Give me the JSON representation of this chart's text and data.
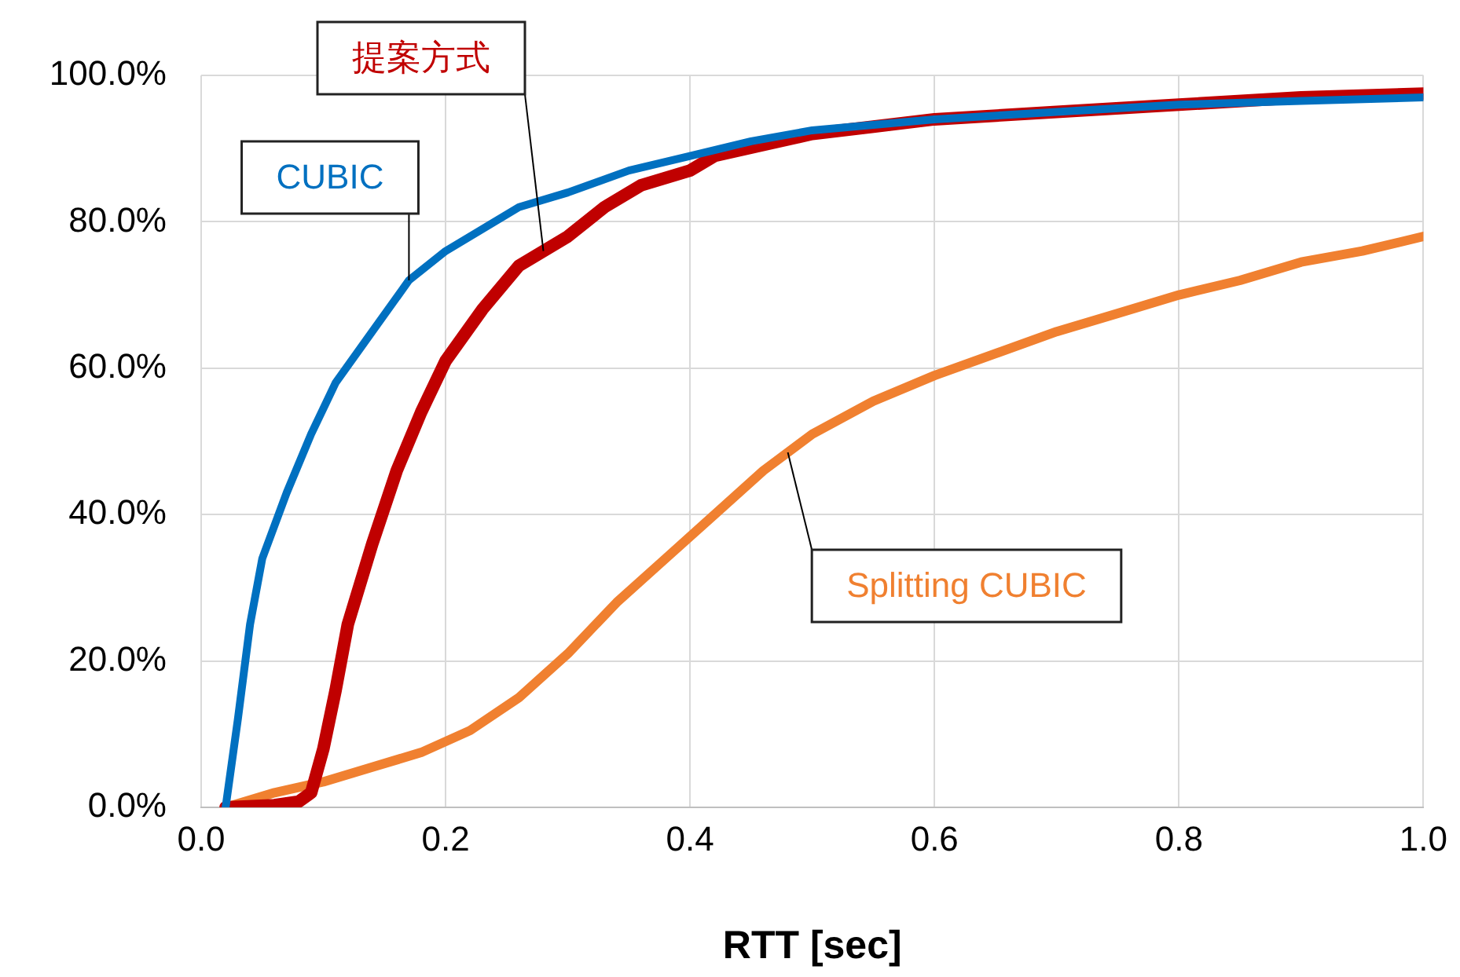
{
  "chart_data": {
    "type": "line",
    "xlabel": "RTT [sec]",
    "xlim": [
      0,
      1
    ],
    "xticks": [
      {
        "value": 0,
        "label": "0.0"
      },
      {
        "value": 0.2,
        "label": "0.2"
      },
      {
        "value": 0.4,
        "label": "0.4"
      },
      {
        "value": 0.6,
        "label": "0.6"
      },
      {
        "value": 0.8,
        "label": "0.8"
      },
      {
        "value": 1,
        "label": "1.0"
      }
    ],
    "ylim": [
      0,
      100
    ],
    "yticks": [
      {
        "value": 0,
        "label": "0.0%"
      },
      {
        "value": 20,
        "label": "20.0%"
      },
      {
        "value": 40,
        "label": "40.0%"
      },
      {
        "value": 60,
        "label": "60.0%"
      },
      {
        "value": 80,
        "label": "80.0%"
      },
      {
        "value": 100,
        "label": "100.0%"
      }
    ],
    "grid": true,
    "legend": false,
    "marker": "none",
    "line_style": "solid",
    "series": [
      {
        "name": "CUBIC",
        "color": "#0070c0",
        "x": [
          0.02,
          0.03,
          0.04,
          0.05,
          0.07,
          0.09,
          0.11,
          0.14,
          0.17,
          0.2,
          0.23,
          0.26,
          0.3,
          0.35,
          0.4,
          0.45,
          0.5,
          0.6,
          0.7,
          0.8,
          0.9,
          1.0
        ],
        "values": [
          0,
          12,
          25,
          34,
          43,
          51,
          58,
          65,
          72,
          76,
          79,
          82,
          84,
          87,
          89,
          91,
          92.5,
          94,
          95,
          96,
          96.5,
          97
        ]
      },
      {
        "name": "提案方式",
        "color": "#c00000",
        "x": [
          0.02,
          0.06,
          0.08,
          0.09,
          0.1,
          0.11,
          0.12,
          0.14,
          0.16,
          0.18,
          0.2,
          0.23,
          0.26,
          0.3,
          0.33,
          0.36,
          0.4,
          0.42,
          0.46,
          0.5,
          0.55,
          0.6,
          0.7,
          0.8,
          0.9,
          1.0
        ],
        "values": [
          0,
          0.3,
          0.8,
          2,
          8,
          16,
          25,
          36,
          46,
          54,
          61,
          68,
          74,
          78,
          82,
          85,
          87,
          89,
          90.5,
          92,
          93,
          94,
          95,
          96,
          97,
          97.5
        ]
      },
      {
        "name": "Splitting CUBIC",
        "color": "#f08030",
        "x": [
          0.02,
          0.06,
          0.1,
          0.14,
          0.18,
          0.22,
          0.26,
          0.3,
          0.34,
          0.38,
          0.42,
          0.46,
          0.5,
          0.55,
          0.6,
          0.65,
          0.7,
          0.75,
          0.8,
          0.85,
          0.9,
          0.95,
          1.0
        ],
        "values": [
          0,
          2,
          3.5,
          5.5,
          7.5,
          10.5,
          15,
          21,
          28,
          34,
          40,
          46,
          51,
          55.5,
          59,
          62,
          65,
          67.5,
          70,
          72,
          74.5,
          76,
          78
        ]
      }
    ]
  }
}
